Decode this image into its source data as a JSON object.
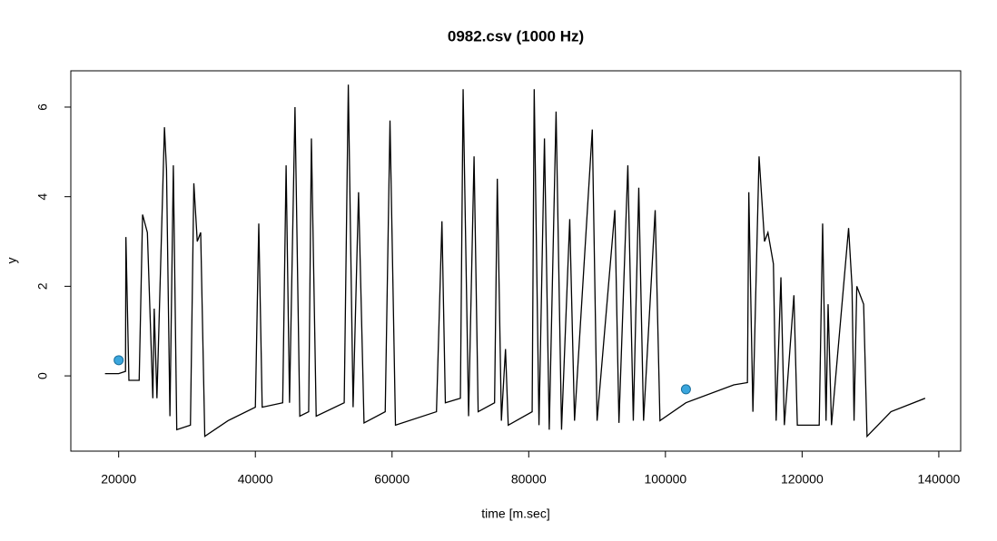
{
  "chart_data": {
    "type": "line",
    "title": "0982.csv (1000 Hz)",
    "x_label": "time [m.sec]",
    "y_label": "y",
    "xlim": [
      13000,
      143200
    ],
    "ylim": [
      -1.68,
      6.81
    ],
    "xticks": [
      20000,
      40000,
      60000,
      80000,
      100000,
      120000,
      140000
    ],
    "yticks": [
      0,
      2,
      4,
      6
    ],
    "color": "#000000",
    "x": [
      18000,
      20000,
      21000,
      21060,
      21500,
      23000,
      23500,
      24200,
      25000,
      25200,
      25600,
      26700,
      27000,
      27500,
      28000,
      28500,
      30500,
      31000,
      31500,
      32000,
      32600,
      36000,
      40000,
      40500,
      41000,
      44000,
      44500,
      45000,
      45800,
      46500,
      47800,
      48200,
      48900,
      53000,
      53600,
      54300,
      55100,
      55900,
      59000,
      59700,
      60500,
      66500,
      67300,
      67800,
      70000,
      70400,
      71200,
      72000,
      72600,
      75000,
      75400,
      76000,
      76600,
      77000,
      80500,
      80800,
      81500,
      82300,
      83000,
      84000,
      84800,
      86000,
      86700,
      89300,
      90000,
      92600,
      93200,
      94500,
      95300,
      96100,
      96800,
      98500,
      99200,
      103000,
      110000,
      112000,
      112200,
      112800,
      113700,
      114500,
      115000,
      115800,
      116200,
      116900,
      117400,
      118800,
      119300,
      122500,
      123000,
      123500,
      123800,
      124300,
      126800,
      127300,
      127600,
      128000,
      129000,
      129500,
      133000,
      138000
    ],
    "values": [
      0.05,
      0.05,
      0.1,
      3.1,
      -0.1,
      -0.1,
      3.6,
      3.2,
      -0.5,
      1.5,
      -0.5,
      5.55,
      4.6,
      -0.9,
      4.7,
      -1.2,
      -1.1,
      4.3,
      3.0,
      3.2,
      -1.35,
      -1.0,
      -0.7,
      3.4,
      -0.7,
      -0.6,
      4.7,
      -0.6,
      6.0,
      -0.9,
      -0.8,
      5.3,
      -0.9,
      -0.6,
      6.5,
      -0.7,
      4.1,
      -1.05,
      -0.8,
      5.7,
      -1.1,
      -0.8,
      3.45,
      -0.6,
      -0.5,
      6.4,
      -0.9,
      4.9,
      -0.8,
      -0.6,
      4.4,
      -1.0,
      0.6,
      -1.1,
      -0.8,
      6.4,
      -1.1,
      5.3,
      -1.2,
      5.9,
      -1.2,
      3.5,
      -1.0,
      5.5,
      -1.0,
      3.7,
      -1.05,
      4.7,
      -1.0,
      4.2,
      -1.0,
      3.7,
      -1.0,
      -0.6,
      -0.2,
      -0.15,
      4.1,
      -0.8,
      4.9,
      3.0,
      3.2,
      2.5,
      -1.0,
      2.2,
      -1.1,
      1.8,
      -1.1,
      -1.1,
      3.4,
      -1.0,
      1.6,
      -1.1,
      3.3,
      2.0,
      -1.0,
      2.0,
      1.6,
      -1.35,
      -0.8,
      -0.5
    ],
    "points": {
      "color": "#3aa6dd",
      "x": [
        20000,
        103000
      ],
      "y": [
        0.35,
        -0.3
      ]
    }
  }
}
